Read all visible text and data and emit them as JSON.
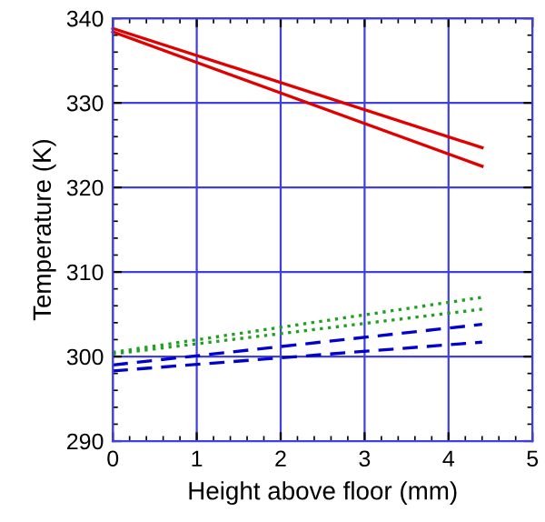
{
  "chart_data": {
    "type": "line",
    "xlabel": "Height above floor (mm)",
    "ylabel": "Temperature (K)",
    "xlim": [
      0,
      5
    ],
    "ylim": [
      290,
      340
    ],
    "xticks": [
      0,
      1,
      2,
      3,
      4,
      5
    ],
    "yticks": [
      290,
      300,
      310,
      320,
      330,
      340
    ],
    "grid": true,
    "x": [
      0,
      4.4
    ],
    "series": [
      {
        "color": "#e00000",
        "values": [
          338.8,
          324.7
        ],
        "line_style": "solid"
      },
      {
        "color": "#e00000",
        "values": [
          338.4,
          322.5
        ],
        "line_style": "solid"
      },
      {
        "color": "#20a020",
        "values": [
          300.5,
          307.0
        ],
        "line_style": "dotted"
      },
      {
        "color": "#20a020",
        "values": [
          300.3,
          305.6
        ],
        "line_style": "dotted"
      },
      {
        "color": "#0000d0",
        "values": [
          299.0,
          303.8
        ],
        "line_style": "dashed"
      },
      {
        "color": "#0000d0",
        "values": [
          298.3,
          301.7
        ],
        "line_style": "dashed"
      }
    ]
  }
}
